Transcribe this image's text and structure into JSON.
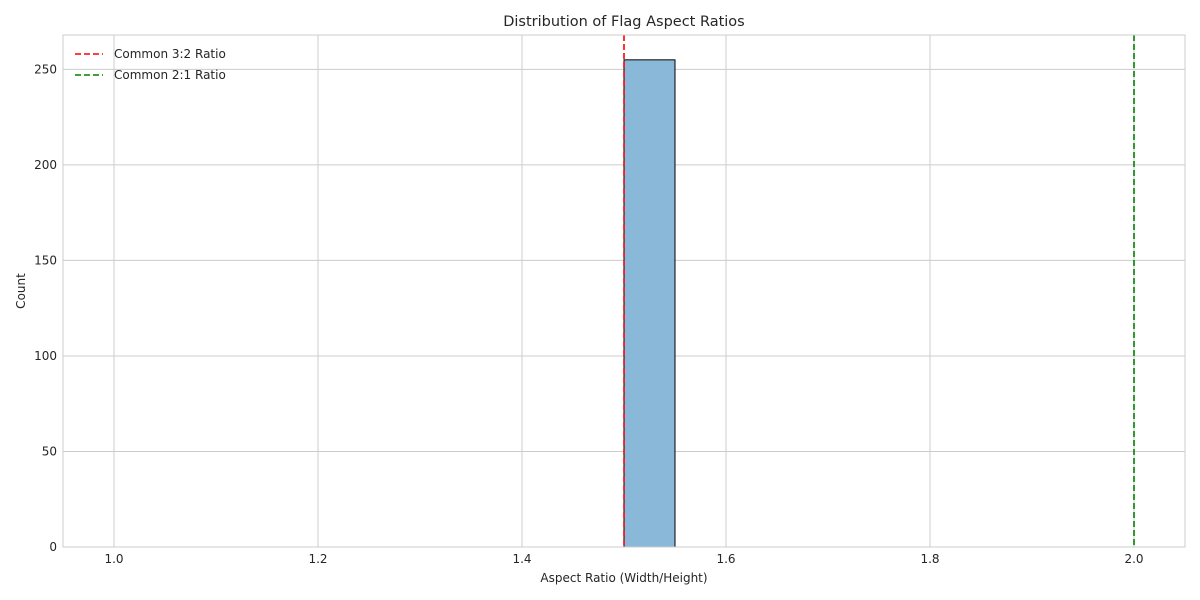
{
  "chart_data": {
    "type": "bar",
    "title": "Distribution of Flag Aspect Ratios",
    "xlabel": "Aspect Ratio (Width/Height)",
    "ylabel": "Count",
    "xlim": [
      0.95,
      2.05
    ],
    "ylim": [
      0,
      268
    ],
    "xticks": [
      "1.0",
      "1.2",
      "1.4",
      "1.6",
      "1.8",
      "2.0"
    ],
    "xtick_values": [
      1.0,
      1.2,
      1.4,
      1.6,
      1.8,
      2.0
    ],
    "yticks": [
      "0",
      "50",
      "100",
      "150",
      "200",
      "250"
    ],
    "ytick_values": [
      0,
      50,
      100,
      150,
      200,
      250
    ],
    "grid": true,
    "bins": [
      {
        "x_start": 1.5,
        "x_end": 1.55,
        "count": 255
      }
    ],
    "bar_color": "#8ab8d9",
    "bar_edge_color": "#000000",
    "reference_lines": [
      {
        "label": "Common 3:2 Ratio",
        "x": 1.5,
        "color": "#ff0000"
      },
      {
        "label": "Common 2:1 Ratio",
        "x": 2.0,
        "color": "#008000"
      }
    ],
    "legend_position": "top-left"
  }
}
